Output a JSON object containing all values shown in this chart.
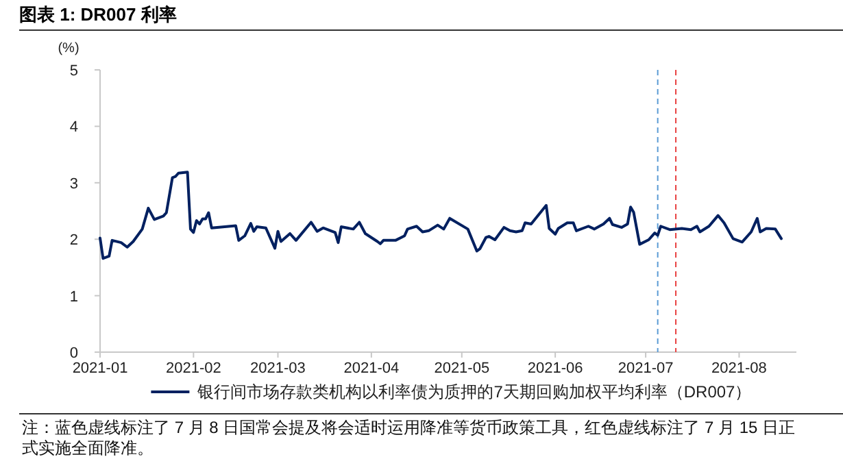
{
  "chart_data": {
    "type": "line",
    "title": "图表 1:  DR007 利率",
    "ylabel": "(%)",
    "x": [
      "2021-01-01",
      "2021-01-02",
      "2021-01-04",
      "2021-01-05",
      "2021-01-08",
      "2021-01-10",
      "2021-01-12",
      "2021-01-15",
      "2021-01-17",
      "2021-01-19",
      "2021-01-22",
      "2021-01-23",
      "2021-01-25",
      "2021-01-26",
      "2021-01-27",
      "2021-01-30",
      "2021-01-31",
      "2021-02-01",
      "2021-02-02",
      "2021-02-03",
      "2021-02-04",
      "2021-02-05",
      "2021-02-06",
      "2021-02-07",
      "2021-02-15",
      "2021-02-16",
      "2021-02-18",
      "2021-02-20",
      "2021-02-21",
      "2021-02-22",
      "2021-02-25",
      "2021-02-28",
      "2021-03-01",
      "2021-03-02",
      "2021-03-05",
      "2021-03-07",
      "2021-03-12",
      "2021-03-14",
      "2021-03-16",
      "2021-03-20",
      "2021-03-21",
      "2021-03-22",
      "2021-03-26",
      "2021-03-28",
      "2021-03-30",
      "2021-04-03",
      "2021-04-04",
      "2021-04-05",
      "2021-04-09",
      "2021-04-12",
      "2021-04-13",
      "2021-04-16",
      "2021-04-18",
      "2021-04-20",
      "2021-04-23",
      "2021-04-25",
      "2021-04-27",
      "2021-05-03",
      "2021-05-06",
      "2021-05-07",
      "2021-05-09",
      "2021-05-10",
      "2021-05-12",
      "2021-05-15",
      "2021-05-17",
      "2021-05-19",
      "2021-05-21",
      "2021-05-22",
      "2021-05-24",
      "2021-05-29",
      "2021-05-30",
      "2021-06-01",
      "2021-06-02",
      "2021-06-05",
      "2021-06-07",
      "2021-06-08",
      "2021-06-12",
      "2021-06-14",
      "2021-06-17",
      "2021-06-19",
      "2021-06-20",
      "2021-06-23",
      "2021-06-25",
      "2021-06-26",
      "2021-06-27",
      "2021-06-29",
      "2021-07-02",
      "2021-07-04",
      "2021-07-05",
      "2021-07-06",
      "2021-07-09",
      "2021-07-13",
      "2021-07-16",
      "2021-07-18",
      "2021-07-19",
      "2021-07-22",
      "2021-07-25",
      "2021-07-27",
      "2021-07-30",
      "2021-08-02",
      "2021-08-05",
      "2021-08-07",
      "2021-08-08",
      "2021-08-10",
      "2021-08-13",
      "2021-08-15"
    ],
    "series": [
      {
        "name": "银行间市场存款类机构以利率债为质押的7天期回购加权平均利率（DR007）",
        "color": "#002060",
        "values": [
          2.02,
          1.66,
          1.7,
          1.98,
          1.94,
          1.86,
          1.96,
          2.18,
          2.55,
          2.35,
          2.41,
          2.47,
          3.09,
          3.11,
          3.17,
          3.19,
          2.18,
          2.12,
          2.33,
          2.27,
          2.36,
          2.36,
          2.47,
          2.2,
          2.24,
          1.98,
          2.06,
          2.28,
          2.14,
          2.22,
          2.2,
          1.84,
          2.14,
          1.96,
          2.1,
          1.98,
          2.3,
          2.14,
          2.2,
          2.12,
          1.94,
          2.22,
          2.18,
          2.3,
          2.1,
          1.96,
          1.92,
          1.98,
          1.98,
          2.06,
          2.18,
          2.23,
          2.13,
          2.15,
          2.25,
          2.18,
          2.37,
          2.18,
          1.79,
          1.83,
          2.03,
          2.05,
          1.99,
          2.21,
          2.15,
          2.13,
          2.15,
          2.29,
          2.27,
          2.6,
          2.19,
          2.09,
          2.19,
          2.29,
          2.29,
          2.15,
          2.23,
          2.18,
          2.27,
          2.37,
          2.26,
          2.21,
          2.27,
          2.57,
          2.48,
          1.91,
          1.99,
          2.11,
          2.07,
          2.23,
          2.17,
          2.19,
          2.17,
          2.23,
          2.13,
          2.23,
          2.42,
          2.29,
          2.01,
          1.95,
          2.13,
          2.37,
          2.13,
          2.19,
          2.18,
          2.01
        ]
      }
    ],
    "xlim": [
      "2021-01-01",
      "2021-08-20"
    ],
    "xticks": [
      {
        "value": "2021-01-01",
        "label": "2021-01"
      },
      {
        "value": "2021-02-01",
        "label": "2021-02"
      },
      {
        "value": "2021-03-01",
        "label": "2021-03"
      },
      {
        "value": "2021-04-01",
        "label": "2021-04"
      },
      {
        "value": "2021-05-01",
        "label": "2021-05"
      },
      {
        "value": "2021-06-01",
        "label": "2021-06"
      },
      {
        "value": "2021-07-01",
        "label": "2021-07"
      },
      {
        "value": "2021-08-01",
        "label": "2021-08"
      }
    ],
    "ylim": [
      0,
      5
    ],
    "yticks": [
      0,
      1,
      2,
      3,
      4,
      5
    ],
    "ref_lines": [
      {
        "axis": "x",
        "value": "2021-07-05",
        "color": "#5b9bd5",
        "line_style": "dashed"
      },
      {
        "axis": "x",
        "value": "2021-07-11",
        "color": "#e84040",
        "line_style": "dashed"
      }
    ],
    "legend": "bottom",
    "grid": false,
    "marker": "none",
    "line_style": "solid",
    "annotations": [
      "注：蓝色虚线标注了 7 月 8 日国常会提及将会适时运用降准等货币政策工具，红色虚线标注了 7 月 15 日正式实施全面降准。"
    ]
  }
}
